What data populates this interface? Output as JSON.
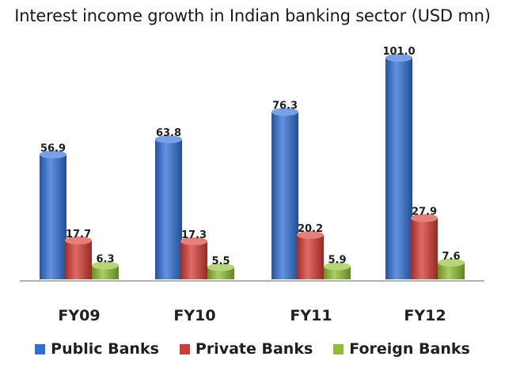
{
  "title": "Interest income growth in Indian banking  sector (USD mn)",
  "chart_data": {
    "type": "bar",
    "title": "Interest income growth in Indian banking  sector (USD mn)",
    "categories": [
      "FY09",
      "FY10",
      "FY11",
      "FY12"
    ],
    "series": [
      {
        "name": "Public Banks",
        "values": [
          56.9,
          63.8,
          76.3,
          101.0
        ],
        "labels": [
          "56.9",
          "63.8",
          "76.3",
          "101.0"
        ],
        "color": "#2f6fd6"
      },
      {
        "name": "Private Banks",
        "values": [
          17.7,
          17.3,
          20.2,
          27.9
        ],
        "labels": [
          "17.7",
          "17.3",
          "20.2",
          "27.9"
        ],
        "color": "#d63a32"
      },
      {
        "name": "Foreign Banks",
        "values": [
          6.3,
          5.5,
          5.9,
          7.6
        ],
        "labels": [
          "6.3",
          "5.5",
          "5.9",
          "7.6"
        ],
        "color": "#8fbe2f"
      }
    ],
    "ylim": [
      0,
      101
    ],
    "grid": false,
    "legend": "bottom"
  }
}
